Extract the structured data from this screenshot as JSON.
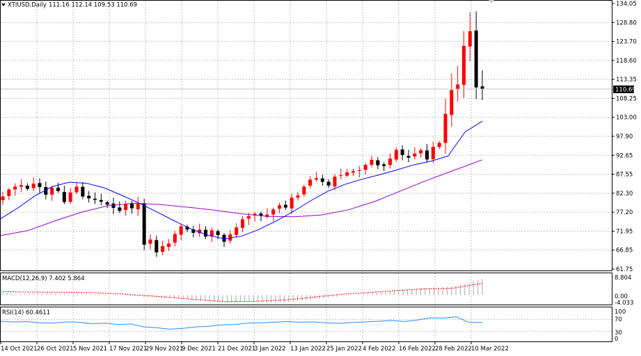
{
  "header": {
    "symbol_label": "XTIUSD,Daily",
    "ohlc_label": "111.16 112.14 109.53 110.69"
  },
  "macd": {
    "label": "MACD(12,26,9) 7.402 5.864",
    "scale": [
      "8.804",
      "0.00",
      "-4.033"
    ]
  },
  "rsi": {
    "label": "RSI(14) 60.4611",
    "scale": [
      "100",
      "70",
      "30",
      "0"
    ]
  },
  "colors": {
    "bull": "#ff0000",
    "bear": "#000000",
    "ma_fast": "#0000ff",
    "ma_slow": "#9400d3",
    "macd_signal": "#ff0000",
    "rsi_line": "#1e90ff",
    "grid": "#c0c0c0"
  },
  "chart_data": {
    "type": "candlestick",
    "ylim": [
      61.75,
      134.05
    ],
    "y_ticks": [
      "134.05",
      "128.80",
      "123.70",
      "118.60",
      "113.35",
      "108.25",
      "103.00",
      "97.90",
      "92.65",
      "87.55",
      "82.30",
      "77.20",
      "71.95",
      "66.85",
      "61.75"
    ],
    "current_price": "110.69",
    "x_labels": [
      "14 Oct 2021",
      "26 Oct 2021",
      "5 Nov 2021",
      "17 Nov 2021",
      "29 Nov 2021",
      "9 Dec 2021",
      "21 Dec 2021",
      "3 Jan 2022",
      "13 Jan 2022",
      "25 Jan 2022",
      "4 Feb 2022",
      "16 Feb 2022",
      "28 Feb 2022",
      "10 Mar 2022"
    ],
    "close_path": [
      81.5,
      83.4,
      84.2,
      84.6,
      83.6,
      85.0,
      84.1,
      82.0,
      83.9,
      83.0,
      80.0,
      82.6,
      84.2,
      81.5,
      81.0,
      80.6,
      80.1,
      79.3,
      78.4,
      77.6,
      79.5,
      78.3,
      79.6,
      68.4,
      69.8,
      66.3,
      68.0,
      68.7,
      71.3,
      73.4,
      72.5,
      71.6,
      72.5,
      70.6,
      72.3,
      71.0,
      69.2,
      71.2,
      73.1,
      75.3,
      76.2,
      76.8,
      76.2,
      76.6,
      78.0,
      79.1,
      78.5,
      81.2,
      81.8,
      84.2,
      86.1,
      86.5,
      85.5,
      84.5,
      86.9,
      87.3,
      88.1,
      88.4,
      88.7,
      90.1,
      91.5,
      90.0,
      89.8,
      91.8,
      94.2,
      92.8,
      92.1,
      93.2,
      94.1,
      91.6,
      95.0,
      96.1,
      104.0,
      110.5,
      112.0,
      122.5,
      126.5,
      111.2,
      110.7
    ],
    "ma_fast_path": [
      75.5,
      78.4,
      81.7,
      84.2,
      85.4,
      85.1,
      83.9,
      81.9,
      79.8,
      77.5,
      75.1,
      72.8,
      71.0,
      70.0,
      70.7,
      72.5,
      74.8,
      77.4,
      80.3,
      82.9,
      84.8,
      86.2,
      87.4,
      88.7,
      90.1,
      91.1,
      92.5,
      99.1,
      102.0
    ],
    "ma_slow_path": [
      70.9,
      72.2,
      74.8,
      77.2,
      79.0,
      79.7,
      79.3,
      78.6,
      77.8,
      76.8,
      76.1,
      76.0,
      76.5,
      77.9,
      80.2,
      83.2,
      86.1,
      88.8,
      91.5
    ],
    "macd_hist_path": [
      1.4,
      0.6,
      0.9,
      0.9,
      0.7,
      0.9,
      0.5,
      0.2,
      -0.4,
      -0.7,
      -1.1,
      -1.4,
      -1.9,
      -2.6,
      -3.6,
      -3.9,
      -3.3,
      -3.3,
      -3.7,
      -3.5,
      -2.7,
      -1.9,
      -1.1,
      -0.2,
      0.6,
      1.4,
      2.1,
      2.6,
      3.5,
      3.8,
      4.3,
      5.8,
      7.9
    ],
    "macd_signal_path": [
      1.8,
      1.6,
      1.5,
      1.4,
      1.4,
      1.3,
      1.2,
      0.9,
      0.5,
      0.0,
      -0.5,
      -1.1,
      -1.7,
      -2.3,
      -2.9,
      -3.3,
      -3.2,
      -3.1,
      -2.8,
      -2.3,
      -1.6,
      -0.8,
      0.0,
      0.6,
      1.1,
      1.6,
      2.1,
      2.6,
      3.0,
      3.2,
      3.4,
      4.6,
      5.9
    ],
    "rsi_path": [
      64,
      62,
      63,
      59,
      58,
      62,
      61,
      56,
      58,
      53,
      55,
      45,
      42,
      37,
      40,
      45,
      47,
      52,
      53,
      58,
      59,
      61,
      63,
      61,
      62,
      59,
      57,
      60,
      62,
      64,
      67,
      63,
      68,
      76,
      75,
      79,
      60,
      60
    ]
  }
}
